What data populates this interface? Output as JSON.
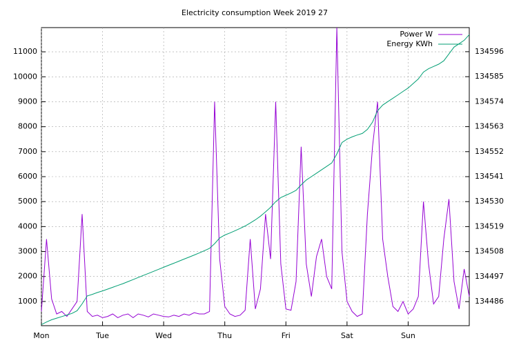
{
  "chart_data": {
    "type": "line",
    "title": "Electricity consumption Week 2019 27",
    "x": [
      0,
      2,
      4,
      6,
      8,
      10,
      12,
      14,
      16,
      18,
      20,
      22,
      24,
      26,
      28,
      30,
      32,
      34,
      36,
      38,
      40,
      42,
      44,
      46,
      48,
      50,
      52,
      54,
      56,
      58,
      60,
      62,
      64,
      66,
      68,
      70,
      72,
      74,
      76,
      78,
      80,
      82,
      84,
      86,
      88,
      90,
      92,
      94,
      96,
      98,
      100,
      102,
      104,
      106,
      108,
      110,
      112,
      114,
      116,
      118,
      120,
      122,
      124,
      126,
      128,
      130,
      132,
      134,
      136,
      138,
      140,
      142,
      144,
      146,
      148,
      150,
      152,
      154,
      156,
      158,
      160,
      162,
      164,
      166,
      168
    ],
    "xlim": [
      0,
      168
    ],
    "xticks": [
      {
        "value": 0,
        "label": "Mon"
      },
      {
        "value": 24,
        "label": "Tue"
      },
      {
        "value": 48,
        "label": "Wed"
      },
      {
        "value": 72,
        "label": "Thu"
      },
      {
        "value": 96,
        "label": "Fri"
      },
      {
        "value": 120,
        "label": "Sat"
      },
      {
        "value": 144,
        "label": "Sun"
      }
    ],
    "ylim": [
      30,
      11970
    ],
    "yticks": [
      1000,
      2000,
      3000,
      4000,
      5000,
      6000,
      7000,
      8000,
      9000,
      10000,
      11000
    ],
    "y2lim": [
      134475.4,
      134606.6
    ],
    "y2ticks": [
      134486,
      134497,
      134508,
      134519,
      134530,
      134541,
      134552,
      134563,
      134574,
      134585,
      134596
    ],
    "grid": true,
    "legend": "top-right",
    "series": [
      {
        "name": "Power W",
        "color": "#9400d3",
        "values": [
          600,
          3500,
          1100,
          500,
          600,
          400,
          700,
          1000,
          4500,
          600,
          400,
          450,
          350,
          400,
          500,
          350,
          450,
          500,
          350,
          500,
          450,
          380,
          500,
          450,
          400,
          380,
          450,
          400,
          500,
          450,
          550,
          500,
          500,
          600,
          9000,
          2700,
          800,
          500,
          400,
          450,
          650,
          3500,
          700,
          1500,
          4500,
          2700,
          9000,
          2500,
          700,
          650,
          1800,
          7200,
          2500,
          1200,
          2800,
          3500,
          2000,
          1500,
          12000,
          3000,
          1000,
          600,
          400,
          500,
          4500,
          7200,
          9000,
          3500,
          2000,
          800,
          600,
          1000,
          500,
          700,
          1200,
          5000,
          2500,
          900,
          1200,
          3500,
          5100,
          1800,
          700,
          2300,
          1200
        ]
      },
      {
        "name": "Energy KWh",
        "color": "#009e73",
        "axis": "y2",
        "values": [
          134475.9,
          134477,
          134478,
          134478.7,
          134479.4,
          134480.1,
          134480.8,
          134482,
          134485,
          134488.5,
          134489.2,
          134490,
          134490.7,
          134491.5,
          134492.3,
          134493.1,
          134493.9,
          134494.8,
          134495.7,
          134496.6,
          134497.5,
          134498.4,
          134499.3,
          134500.2,
          134501.1,
          134502,
          134502.9,
          134503.8,
          134504.7,
          134505.6,
          134506.5,
          134507.4,
          134508.4,
          134509.4,
          134511.5,
          134514,
          134515.3,
          134516.2,
          134517.2,
          134518.2,
          134519.3,
          134520.6,
          134522,
          134523.6,
          134525.5,
          134527.5,
          134530,
          134531.8,
          134532.8,
          134533.8,
          134535,
          134537.4,
          134539.5,
          134541,
          134542.5,
          134544,
          134545.5,
          134547,
          134551,
          134556,
          134557.5,
          134558.5,
          134559.3,
          134560,
          134561.8,
          134565,
          134570,
          134572.5,
          134574,
          134575.5,
          134577,
          134578.5,
          134580,
          134582,
          134584,
          134587,
          134588.5,
          134589.5,
          134590.5,
          134592,
          134595,
          134598,
          134599.5,
          134601,
          134603.5
        ]
      }
    ]
  }
}
